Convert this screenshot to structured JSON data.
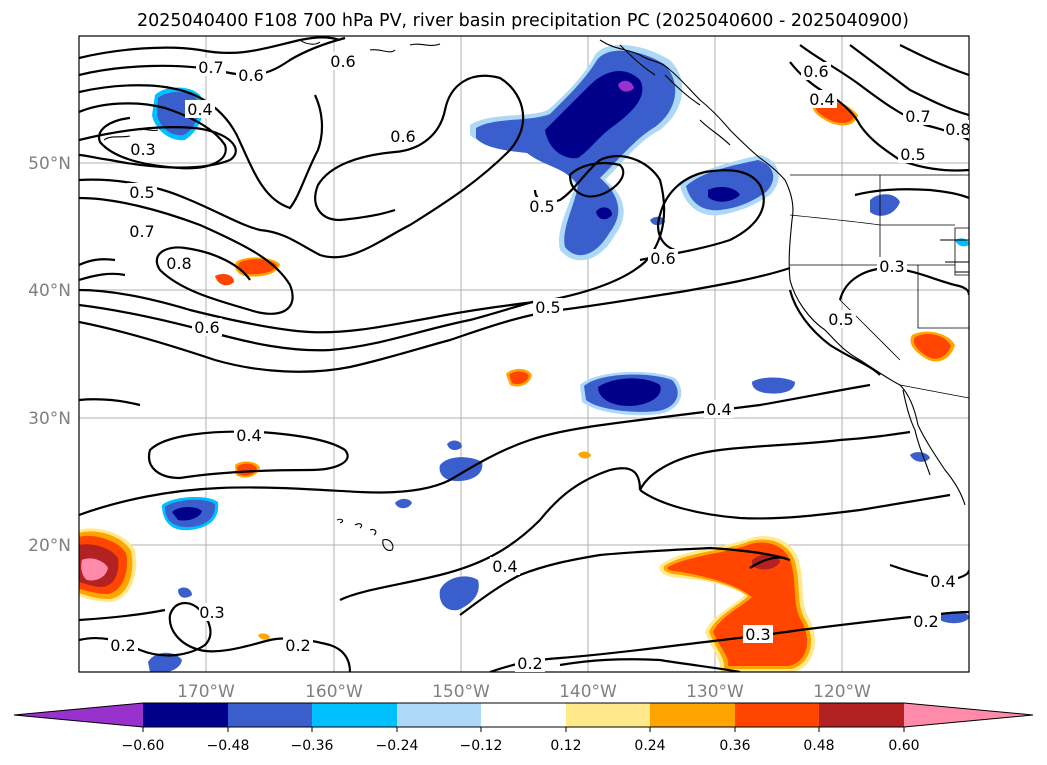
{
  "title": "2025040400 F108 700 hPa PV, river basin precipitation PC (2025040600 - 2025040900)",
  "map": {
    "lon_labels": [
      "170°W",
      "160°W",
      "150°W",
      "140°W",
      "130°W",
      "120°W"
    ],
    "lat_labels": [
      "50°N",
      "40°N",
      "30°N",
      "20°N"
    ],
    "contour_labels": [
      {
        "text": "0.7"
      },
      {
        "text": "0.6"
      },
      {
        "text": "0.6"
      },
      {
        "text": "0.4"
      },
      {
        "text": "0.3"
      },
      {
        "text": "0.6"
      },
      {
        "text": "0.5"
      },
      {
        "text": "0.7"
      },
      {
        "text": "0.8"
      },
      {
        "text": "0.6"
      },
      {
        "text": "0.5"
      },
      {
        "text": "0.6"
      },
      {
        "text": "0.5"
      },
      {
        "text": "0.6"
      },
      {
        "text": "0.4"
      },
      {
        "text": "0.7"
      },
      {
        "text": "0.8"
      },
      {
        "text": "0.5"
      },
      {
        "text": "0.3"
      },
      {
        "text": "0.5"
      },
      {
        "text": "0.4"
      },
      {
        "text": "0.4"
      },
      {
        "text": "0.3"
      },
      {
        "text": "0.2"
      },
      {
        "text": "0.2"
      },
      {
        "text": "0.4"
      },
      {
        "text": "0.2"
      },
      {
        "text": "0.3"
      },
      {
        "text": "0.2"
      },
      {
        "text": "0.4"
      }
    ]
  },
  "colorbar": {
    "ticks": [
      "−0.60",
      "−0.48",
      "−0.36",
      "−0.24",
      "−0.12",
      "0.12",
      "0.24",
      "0.36",
      "0.48",
      "0.60"
    ],
    "colors": {
      "lt_-0.60": "#9932cc",
      "-0.60_-0.48": "#00008b",
      "-0.48_-0.36": "#3a5fcd",
      "-0.36_-0.24": "#00bfff",
      "-0.24_-0.12": "#add8f6",
      "-0.12_0.12": "#ffffff",
      "0.12_0.24": "#ffe98a",
      "0.24_0.36": "#ffa500",
      "0.36_0.48": "#ff4500",
      "0.48_0.60": "#b22222",
      "gt_0.60": "#ff8aaa"
    }
  }
}
